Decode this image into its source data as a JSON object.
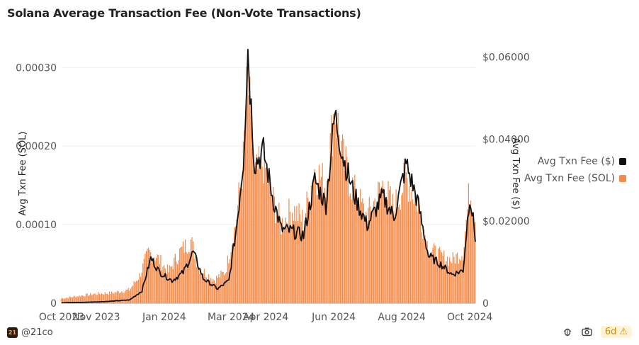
{
  "header": {
    "title": "Solana Average Transaction Fee (Non-Vote Transactions)"
  },
  "footer": {
    "brand_logo_text": "21",
    "brand_handle": "@21co",
    "badge_text": "6d",
    "badge_icon": "warning-icon",
    "icons": [
      "bug-icon",
      "camera-icon"
    ]
  },
  "colors": {
    "bar": "#f58a46",
    "line": "#111111",
    "axis_text": "#555555",
    "grid": "#eeeeee"
  },
  "chart_data": {
    "type": "bar",
    "title": "Solana Average Transaction Fee (Non-Vote Transactions)",
    "xlabel": "",
    "ylabel_left": "Avg Txn Fee (SOL)",
    "ylabel_right": "Avg Txn Fee ($)",
    "ylim_left": [
      0,
      0.00033
    ],
    "ylim_right": [
      0,
      0.0632
    ],
    "yticks_left": [
      0,
      0.0001,
      0.0002,
      0.0003
    ],
    "yticks_left_labels": [
      "0",
      "0.00010",
      "0.00020",
      "0.00030"
    ],
    "yticks_right": [
      0,
      0.02,
      0.04,
      0.06
    ],
    "yticks_right_labels": [
      "0",
      "$0.02000",
      "$0.04000",
      "$0.06000"
    ],
    "x_start": "2023-10-01",
    "x_end": "2024-10-06",
    "xticks": [
      {
        "date": "2023-10-01",
        "label": "Oct 2023"
      },
      {
        "date": "2023-11-01",
        "label": "Nov 2023"
      },
      {
        "date": "2024-01-01",
        "label": "Jan 2024"
      },
      {
        "date": "2024-03-01",
        "label": "Mar 2024"
      },
      {
        "date": "2024-04-01",
        "label": "Apr 2024"
      },
      {
        "date": "2024-06-01",
        "label": "Jun 2024"
      },
      {
        "date": "2024-08-01",
        "label": "Aug 2024"
      },
      {
        "date": "2024-10-01",
        "label": "Oct 2024"
      }
    ],
    "legend": [
      {
        "name": "Avg Txn Fee ($)",
        "color": "#111111"
      },
      {
        "name": "Avg Txn Fee (SOL)",
        "color": "#f58a46"
      }
    ],
    "legend_position": "right",
    "series": [
      {
        "name": "Avg Txn Fee (SOL)",
        "kind": "bar",
        "axis": "left",
        "anchors": [
          [
            "2023-10-01",
            6e-06
          ],
          [
            "2023-10-15",
            9e-06
          ],
          [
            "2023-11-01",
            1.2e-05
          ],
          [
            "2023-11-15",
            1.3e-05
          ],
          [
            "2023-12-01",
            1.7e-05
          ],
          [
            "2023-12-10",
            3.5e-05
          ],
          [
            "2023-12-18",
            6.5e-05
          ],
          [
            "2023-12-25",
            6e-05
          ],
          [
            "2024-01-05",
            4e-05
          ],
          [
            "2024-01-15",
            6.5e-05
          ],
          [
            "2024-01-25",
            8e-05
          ],
          [
            "2024-02-01",
            4.5e-05
          ],
          [
            "2024-02-15",
            3e-05
          ],
          [
            "2024-02-25",
            4e-05
          ],
          [
            "2024-03-05",
            0.0001
          ],
          [
            "2024-03-12",
            0.00018
          ],
          [
            "2024-03-16",
            0.00029
          ],
          [
            "2024-03-22",
            0.00016
          ],
          [
            "2024-03-30",
            0.00018
          ],
          [
            "2024-04-08",
            0.00013
          ],
          [
            "2024-04-15",
            0.0001
          ],
          [
            "2024-04-25",
            0.00012
          ],
          [
            "2024-05-05",
            0.000105
          ],
          [
            "2024-05-15",
            0.00017
          ],
          [
            "2024-05-25",
            0.00015
          ],
          [
            "2024-06-02",
            0.00025
          ],
          [
            "2024-06-10",
            0.00018
          ],
          [
            "2024-06-20",
            0.00014
          ],
          [
            "2024-07-01",
            0.00011
          ],
          [
            "2024-07-15",
            0.00015
          ],
          [
            "2024-07-25",
            0.00012
          ],
          [
            "2024-08-05",
            0.00016
          ],
          [
            "2024-08-15",
            0.00013
          ],
          [
            "2024-08-25",
            7e-05
          ],
          [
            "2024-09-05",
            6e-05
          ],
          [
            "2024-09-15",
            5.5e-05
          ],
          [
            "2024-09-25",
            6.5e-05
          ],
          [
            "2024-10-01",
            0.000145
          ],
          [
            "2024-10-06",
            0.00011
          ]
        ]
      },
      {
        "name": "Avg Txn Fee ($)",
        "kind": "line",
        "axis": "right",
        "anchors": [
          [
            "2023-10-01",
            0.0001
          ],
          [
            "2023-10-20",
            0.0002
          ],
          [
            "2023-11-10",
            0.0004
          ],
          [
            "2023-12-01",
            0.0008
          ],
          [
            "2023-12-12",
            0.003
          ],
          [
            "2023-12-20",
            0.011
          ],
          [
            "2023-12-28",
            0.0075
          ],
          [
            "2024-01-08",
            0.0055
          ],
          [
            "2024-01-18",
            0.0075
          ],
          [
            "2024-01-27",
            0.0125
          ],
          [
            "2024-02-05",
            0.006
          ],
          [
            "2024-02-18",
            0.0035
          ],
          [
            "2024-02-28",
            0.0055
          ],
          [
            "2024-03-06",
            0.019
          ],
          [
            "2024-03-12",
            0.035
          ],
          [
            "2024-03-16",
            0.062
          ],
          [
            "2024-03-22",
            0.034
          ],
          [
            "2024-03-30",
            0.037
          ],
          [
            "2024-04-08",
            0.025
          ],
          [
            "2024-04-15",
            0.018
          ],
          [
            "2024-04-25",
            0.0175
          ],
          [
            "2024-05-05",
            0.0165
          ],
          [
            "2024-05-15",
            0.03
          ],
          [
            "2024-05-25",
            0.024
          ],
          [
            "2024-06-02",
            0.046
          ],
          [
            "2024-06-10",
            0.035
          ],
          [
            "2024-06-20",
            0.026
          ],
          [
            "2024-07-01",
            0.019
          ],
          [
            "2024-07-15",
            0.026
          ],
          [
            "2024-07-25",
            0.021
          ],
          [
            "2024-08-05",
            0.034
          ],
          [
            "2024-08-15",
            0.025
          ],
          [
            "2024-08-25",
            0.0115
          ],
          [
            "2024-09-05",
            0.0095
          ],
          [
            "2024-09-15",
            0.007
          ],
          [
            "2024-09-25",
            0.008
          ],
          [
            "2024-10-01",
            0.0265
          ],
          [
            "2024-10-06",
            0.016
          ]
        ]
      }
    ]
  }
}
